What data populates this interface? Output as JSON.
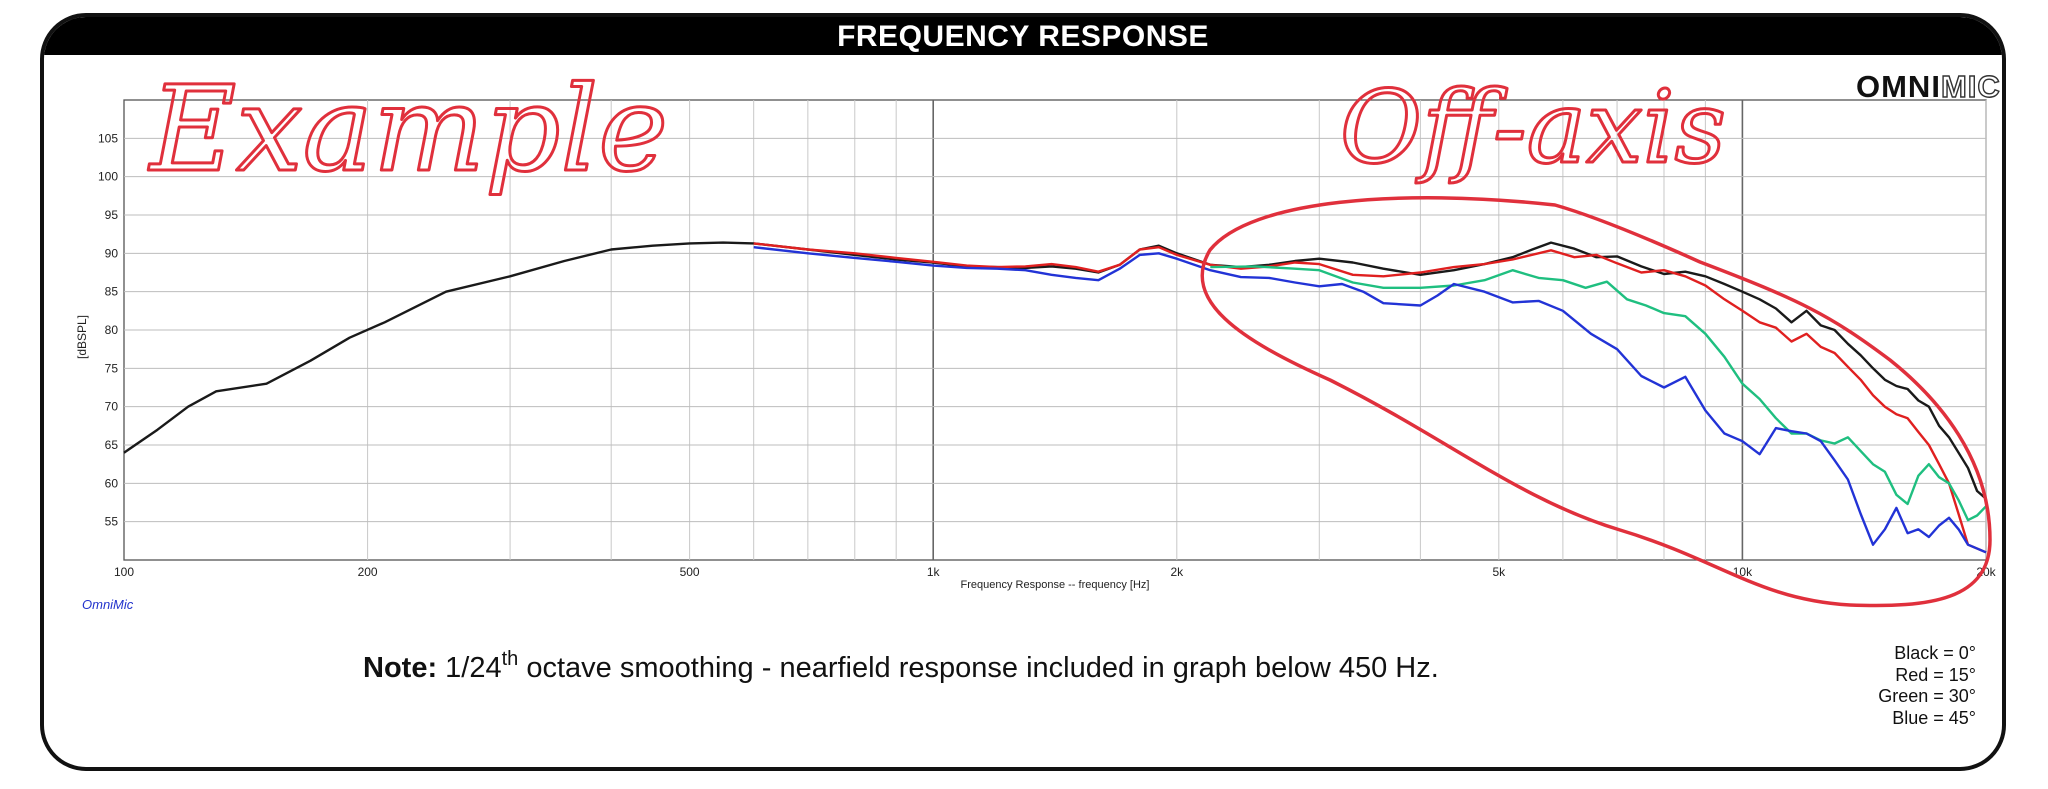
{
  "header": {
    "title": "FREQUENCY RESPONSE"
  },
  "logo": {
    "part1": "OMNI",
    "part2": "MIC"
  },
  "brand_small": "OmniMic",
  "annotations": {
    "left": "Example",
    "right": "Off-axis"
  },
  "note": {
    "label": "Note:",
    "text_before_sup": "1/24",
    "sup": "th",
    "text_after_sup": " octave smoothing - nearfield response included in graph below 450 Hz."
  },
  "legend": [
    "Black = 0°",
    "Red = 15°",
    "Green = 30°",
    "Blue = 45°"
  ],
  "colors": {
    "black": "#1a1a1a",
    "red": "#e02020",
    "green": "#1fbf80",
    "blue": "#2233d6",
    "ink": "#e0303c"
  },
  "chart_data": {
    "type": "line",
    "title": "FREQUENCY RESPONSE",
    "xlabel": "Frequency Response -- frequency [Hz]",
    "ylabel": "[dBSPL]",
    "xscale": "log",
    "xlim": [
      100,
      20000
    ],
    "ylim": [
      50,
      110
    ],
    "grid": true,
    "x_ticks": [
      {
        "v": 100,
        "label": "100"
      },
      {
        "v": 200,
        "label": "200"
      },
      {
        "v": 500,
        "label": "500"
      },
      {
        "v": 1000,
        "label": "1k"
      },
      {
        "v": 2000,
        "label": "2k"
      },
      {
        "v": 5000,
        "label": "5k"
      },
      {
        "v": 10000,
        "label": "10k"
      },
      {
        "v": 20000,
        "label": "20k"
      }
    ],
    "y_ticks": [
      55,
      60,
      65,
      70,
      75,
      80,
      85,
      90,
      95,
      100,
      105
    ],
    "series": [
      {
        "color": "#1a1a1a",
        "points": [
          [
            100,
            64
          ],
          [
            110,
            67
          ],
          [
            120,
            70
          ],
          [
            130,
            72
          ],
          [
            150,
            73
          ],
          [
            170,
            76
          ],
          [
            190,
            79
          ],
          [
            210,
            81
          ],
          [
            250,
            85
          ],
          [
            300,
            87
          ],
          [
            350,
            89
          ],
          [
            400,
            90.5
          ],
          [
            450,
            91
          ],
          [
            500,
            91.3
          ],
          [
            550,
            91.4
          ],
          [
            600,
            91.3
          ],
          [
            700,
            90.5
          ],
          [
            800,
            89.8
          ],
          [
            900,
            89.2
          ],
          [
            1000,
            88.8
          ],
          [
            1100,
            88.3
          ],
          [
            1200,
            88.2
          ],
          [
            1300,
            88.1
          ],
          [
            1400,
            88.3
          ],
          [
            1500,
            88
          ],
          [
            1600,
            87.5
          ],
          [
            1700,
            88.5
          ],
          [
            1800,
            90.5
          ],
          [
            1900,
            91
          ],
          [
            2000,
            90
          ],
          [
            2200,
            88.5
          ],
          [
            2400,
            88.2
          ],
          [
            2600,
            88.5
          ],
          [
            2800,
            89
          ],
          [
            3000,
            89.3
          ],
          [
            3300,
            88.8
          ],
          [
            3600,
            88
          ],
          [
            4000,
            87.2
          ],
          [
            4400,
            87.8
          ],
          [
            4800,
            88.6
          ],
          [
            5200,
            89.5
          ],
          [
            5500,
            90.5
          ],
          [
            5800,
            91.4
          ],
          [
            6200,
            90.6
          ],
          [
            6600,
            89.5
          ],
          [
            7000,
            89.6
          ],
          [
            7500,
            88.3
          ],
          [
            8000,
            87.3
          ],
          [
            8500,
            87.6
          ],
          [
            9000,
            87
          ],
          [
            9500,
            86
          ],
          [
            10000,
            85
          ],
          [
            10500,
            84
          ],
          [
            11000,
            82.8
          ],
          [
            11500,
            81
          ],
          [
            12000,
            82.5
          ],
          [
            12500,
            80.6
          ],
          [
            13000,
            80
          ],
          [
            13500,
            78.2
          ],
          [
            14000,
            76.7
          ],
          [
            14500,
            75
          ],
          [
            15000,
            73.5
          ],
          [
            15500,
            72.7
          ],
          [
            16000,
            72.3
          ],
          [
            16500,
            70.8
          ],
          [
            17000,
            70
          ],
          [
            17500,
            67.5
          ],
          [
            18000,
            66
          ],
          [
            18500,
            64
          ],
          [
            19000,
            62
          ],
          [
            19500,
            59
          ],
          [
            20000,
            58
          ]
        ]
      },
      {
        "color": "#e02020",
        "points": [
          [
            600,
            91.3
          ],
          [
            700,
            90.5
          ],
          [
            800,
            90
          ],
          [
            900,
            89.4
          ],
          [
            1000,
            88.9
          ],
          [
            1100,
            88.4
          ],
          [
            1200,
            88.2
          ],
          [
            1300,
            88.3
          ],
          [
            1400,
            88.6
          ],
          [
            1500,
            88.2
          ],
          [
            1600,
            87.6
          ],
          [
            1700,
            88.5
          ],
          [
            1800,
            90.5
          ],
          [
            1900,
            90.8
          ],
          [
            2000,
            89.8
          ],
          [
            2200,
            88.5
          ],
          [
            2400,
            88
          ],
          [
            2600,
            88.3
          ],
          [
            2800,
            88.8
          ],
          [
            3000,
            88.6
          ],
          [
            3300,
            87.2
          ],
          [
            3600,
            87
          ],
          [
            4000,
            87.5
          ],
          [
            4400,
            88.2
          ],
          [
            4800,
            88.6
          ],
          [
            5200,
            89.2
          ],
          [
            5800,
            90.4
          ],
          [
            6200,
            89.5
          ],
          [
            6600,
            89.8
          ],
          [
            7000,
            88.7
          ],
          [
            7500,
            87.5
          ],
          [
            8000,
            87.8
          ],
          [
            8500,
            87
          ],
          [
            9000,
            85.8
          ],
          [
            9500,
            84
          ],
          [
            10000,
            82.5
          ],
          [
            10500,
            81
          ],
          [
            11000,
            80.3
          ],
          [
            11500,
            78.5
          ],
          [
            12000,
            79.5
          ],
          [
            12500,
            77.8
          ],
          [
            13000,
            77
          ],
          [
            13500,
            75.2
          ],
          [
            14000,
            73.5
          ],
          [
            14500,
            71.5
          ],
          [
            15000,
            70
          ],
          [
            15500,
            69
          ],
          [
            16000,
            68.5
          ],
          [
            16500,
            66.7
          ],
          [
            17000,
            65
          ],
          [
            17500,
            62.5
          ],
          [
            18000,
            60
          ],
          [
            18500,
            56
          ],
          [
            19000,
            52
          ],
          [
            20000,
            51
          ]
        ]
      },
      {
        "color": "#1fbf80",
        "points": [
          [
            2200,
            88.2
          ],
          [
            2500,
            88.3
          ],
          [
            2800,
            88
          ],
          [
            3000,
            87.8
          ],
          [
            3300,
            86.2
          ],
          [
            3600,
            85.5
          ],
          [
            4000,
            85.5
          ],
          [
            4400,
            85.8
          ],
          [
            4800,
            86.5
          ],
          [
            5200,
            87.8
          ],
          [
            5600,
            86.8
          ],
          [
            6000,
            86.5
          ],
          [
            6400,
            85.5
          ],
          [
            6800,
            86.3
          ],
          [
            7200,
            84
          ],
          [
            7600,
            83.2
          ],
          [
            8000,
            82.2
          ],
          [
            8500,
            81.8
          ],
          [
            9000,
            79.5
          ],
          [
            9500,
            76.5
          ],
          [
            10000,
            73
          ],
          [
            10500,
            71
          ],
          [
            11000,
            68.5
          ],
          [
            11500,
            66.5
          ],
          [
            12000,
            66.5
          ],
          [
            12500,
            65.6
          ],
          [
            13000,
            65.2
          ],
          [
            13500,
            66
          ],
          [
            14000,
            64.2
          ],
          [
            14500,
            62.5
          ],
          [
            15000,
            61.5
          ],
          [
            15500,
            58.5
          ],
          [
            16000,
            57.3
          ],
          [
            16500,
            61
          ],
          [
            17000,
            62.5
          ],
          [
            17500,
            60.8
          ],
          [
            18000,
            60
          ],
          [
            18500,
            57.8
          ],
          [
            19000,
            55.2
          ],
          [
            19500,
            55.8
          ],
          [
            20000,
            57
          ]
        ]
      },
      {
        "color": "#2233d6",
        "points": [
          [
            600,
            90.8
          ],
          [
            700,
            90
          ],
          [
            800,
            89.4
          ],
          [
            900,
            88.9
          ],
          [
            1000,
            88.4
          ],
          [
            1100,
            88.1
          ],
          [
            1200,
            88
          ],
          [
            1300,
            87.8
          ],
          [
            1400,
            87.2
          ],
          [
            1500,
            86.8
          ],
          [
            1600,
            86.5
          ],
          [
            1700,
            88
          ],
          [
            1800,
            89.8
          ],
          [
            1900,
            90
          ],
          [
            2000,
            89.3
          ],
          [
            2200,
            87.8
          ],
          [
            2400,
            86.9
          ],
          [
            2600,
            86.8
          ],
          [
            2800,
            86.2
          ],
          [
            3000,
            85.7
          ],
          [
            3200,
            86
          ],
          [
            3400,
            85
          ],
          [
            3600,
            83.5
          ],
          [
            4000,
            83.2
          ],
          [
            4200,
            84.5
          ],
          [
            4400,
            86
          ],
          [
            4800,
            85
          ],
          [
            5200,
            83.6
          ],
          [
            5600,
            83.8
          ],
          [
            6000,
            82.5
          ],
          [
            6500,
            79.5
          ],
          [
            7000,
            77.5
          ],
          [
            7500,
            74
          ],
          [
            8000,
            72.5
          ],
          [
            8500,
            73.9
          ],
          [
            9000,
            69.5
          ],
          [
            9500,
            66.5
          ],
          [
            10000,
            65.5
          ],
          [
            10500,
            63.8
          ],
          [
            11000,
            67.2
          ],
          [
            11500,
            66.8
          ],
          [
            12000,
            66.5
          ],
          [
            12500,
            65.5
          ],
          [
            13000,
            63
          ],
          [
            13500,
            60.5
          ],
          [
            14000,
            56
          ],
          [
            14500,
            52
          ],
          [
            15000,
            54
          ],
          [
            15500,
            56.8
          ],
          [
            16000,
            53.5
          ],
          [
            16500,
            54
          ],
          [
            17000,
            53
          ],
          [
            17500,
            54.5
          ],
          [
            18000,
            55.5
          ],
          [
            18500,
            54
          ],
          [
            19000,
            52
          ],
          [
            20000,
            51
          ]
        ]
      }
    ]
  }
}
